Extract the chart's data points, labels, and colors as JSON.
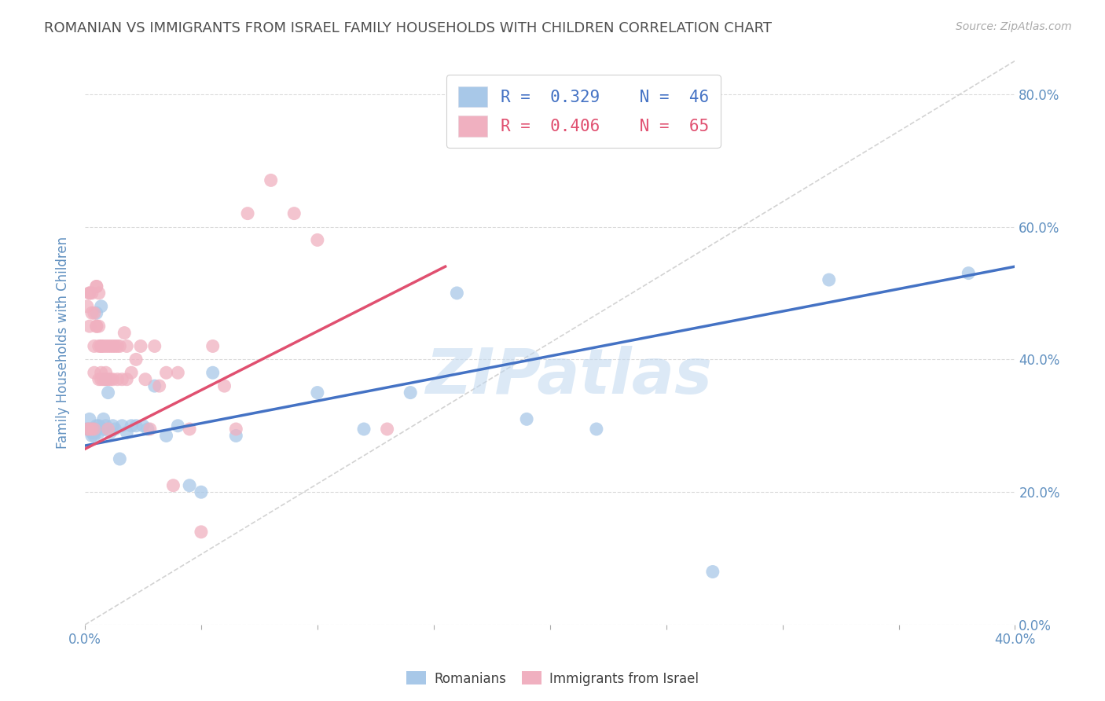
{
  "title": "ROMANIAN VS IMMIGRANTS FROM ISRAEL FAMILY HOUSEHOLDS WITH CHILDREN CORRELATION CHART",
  "source": "Source: ZipAtlas.com",
  "ylabel": "Family Households with Children",
  "watermark": "ZIPatlas",
  "legend_label_blue": "R =  0.329    N =  46",
  "legend_label_pink": "R =  0.406    N =  65",
  "legend_label_romanians": "Romanians",
  "legend_label_immigrants": "Immigrants from Israel",
  "blue_color": "#a8c8e8",
  "pink_color": "#f0b0c0",
  "trendline_blue": "#4472c4",
  "trendline_pink": "#e05070",
  "diagonal_color": "#c8c8c8",
  "x_min": 0.0,
  "x_max": 0.4,
  "y_min": 0.0,
  "y_max": 0.85,
  "blue_x": [
    0.001,
    0.002,
    0.002,
    0.003,
    0.003,
    0.003,
    0.004,
    0.004,
    0.004,
    0.005,
    0.005,
    0.005,
    0.006,
    0.006,
    0.007,
    0.008,
    0.008,
    0.009,
    0.009,
    0.01,
    0.011,
    0.012,
    0.013,
    0.015,
    0.016,
    0.018,
    0.02,
    0.022,
    0.025,
    0.027,
    0.03,
    0.035,
    0.04,
    0.045,
    0.05,
    0.055,
    0.065,
    0.1,
    0.12,
    0.14,
    0.16,
    0.19,
    0.22,
    0.27,
    0.32,
    0.38
  ],
  "blue_y": [
    0.295,
    0.31,
    0.295,
    0.285,
    0.29,
    0.295,
    0.29,
    0.295,
    0.285,
    0.3,
    0.47,
    0.295,
    0.29,
    0.3,
    0.48,
    0.295,
    0.31,
    0.37,
    0.3,
    0.35,
    0.29,
    0.3,
    0.295,
    0.25,
    0.3,
    0.29,
    0.3,
    0.3,
    0.3,
    0.295,
    0.36,
    0.285,
    0.3,
    0.21,
    0.2,
    0.38,
    0.285,
    0.35,
    0.295,
    0.35,
    0.5,
    0.31,
    0.295,
    0.08,
    0.52,
    0.53
  ],
  "pink_x": [
    0.001,
    0.001,
    0.002,
    0.002,
    0.002,
    0.002,
    0.003,
    0.003,
    0.003,
    0.004,
    0.004,
    0.004,
    0.004,
    0.005,
    0.005,
    0.005,
    0.005,
    0.006,
    0.006,
    0.006,
    0.006,
    0.007,
    0.007,
    0.007,
    0.007,
    0.008,
    0.008,
    0.009,
    0.009,
    0.009,
    0.01,
    0.01,
    0.01,
    0.011,
    0.011,
    0.012,
    0.012,
    0.013,
    0.014,
    0.014,
    0.015,
    0.016,
    0.017,
    0.018,
    0.018,
    0.02,
    0.022,
    0.024,
    0.026,
    0.028,
    0.03,
    0.032,
    0.035,
    0.038,
    0.04,
    0.045,
    0.05,
    0.055,
    0.06,
    0.065,
    0.07,
    0.08,
    0.09,
    0.1,
    0.13
  ],
  "pink_y": [
    0.295,
    0.48,
    0.295,
    0.5,
    0.5,
    0.45,
    0.5,
    0.47,
    0.295,
    0.47,
    0.295,
    0.42,
    0.38,
    0.51,
    0.45,
    0.51,
    0.45,
    0.5,
    0.45,
    0.42,
    0.37,
    0.42,
    0.37,
    0.42,
    0.38,
    0.42,
    0.37,
    0.38,
    0.42,
    0.37,
    0.42,
    0.37,
    0.295,
    0.42,
    0.37,
    0.42,
    0.37,
    0.42,
    0.37,
    0.42,
    0.42,
    0.37,
    0.44,
    0.42,
    0.37,
    0.38,
    0.4,
    0.42,
    0.37,
    0.295,
    0.42,
    0.36,
    0.38,
    0.21,
    0.38,
    0.295,
    0.14,
    0.42,
    0.36,
    0.295,
    0.62,
    0.67,
    0.62,
    0.58,
    0.295
  ],
  "blue_trendline_x": [
    0.0,
    0.4
  ],
  "blue_trendline_y": [
    0.27,
    0.54
  ],
  "pink_trendline_x": [
    0.0,
    0.155
  ],
  "pink_trendline_y": [
    0.265,
    0.54
  ],
  "background_color": "#ffffff",
  "grid_color": "#d8d8d8",
  "title_color": "#505050",
  "axis_label_color": "#6090c0",
  "tick_label_color": "#6090c0",
  "watermark_color": "#c0d8f0"
}
